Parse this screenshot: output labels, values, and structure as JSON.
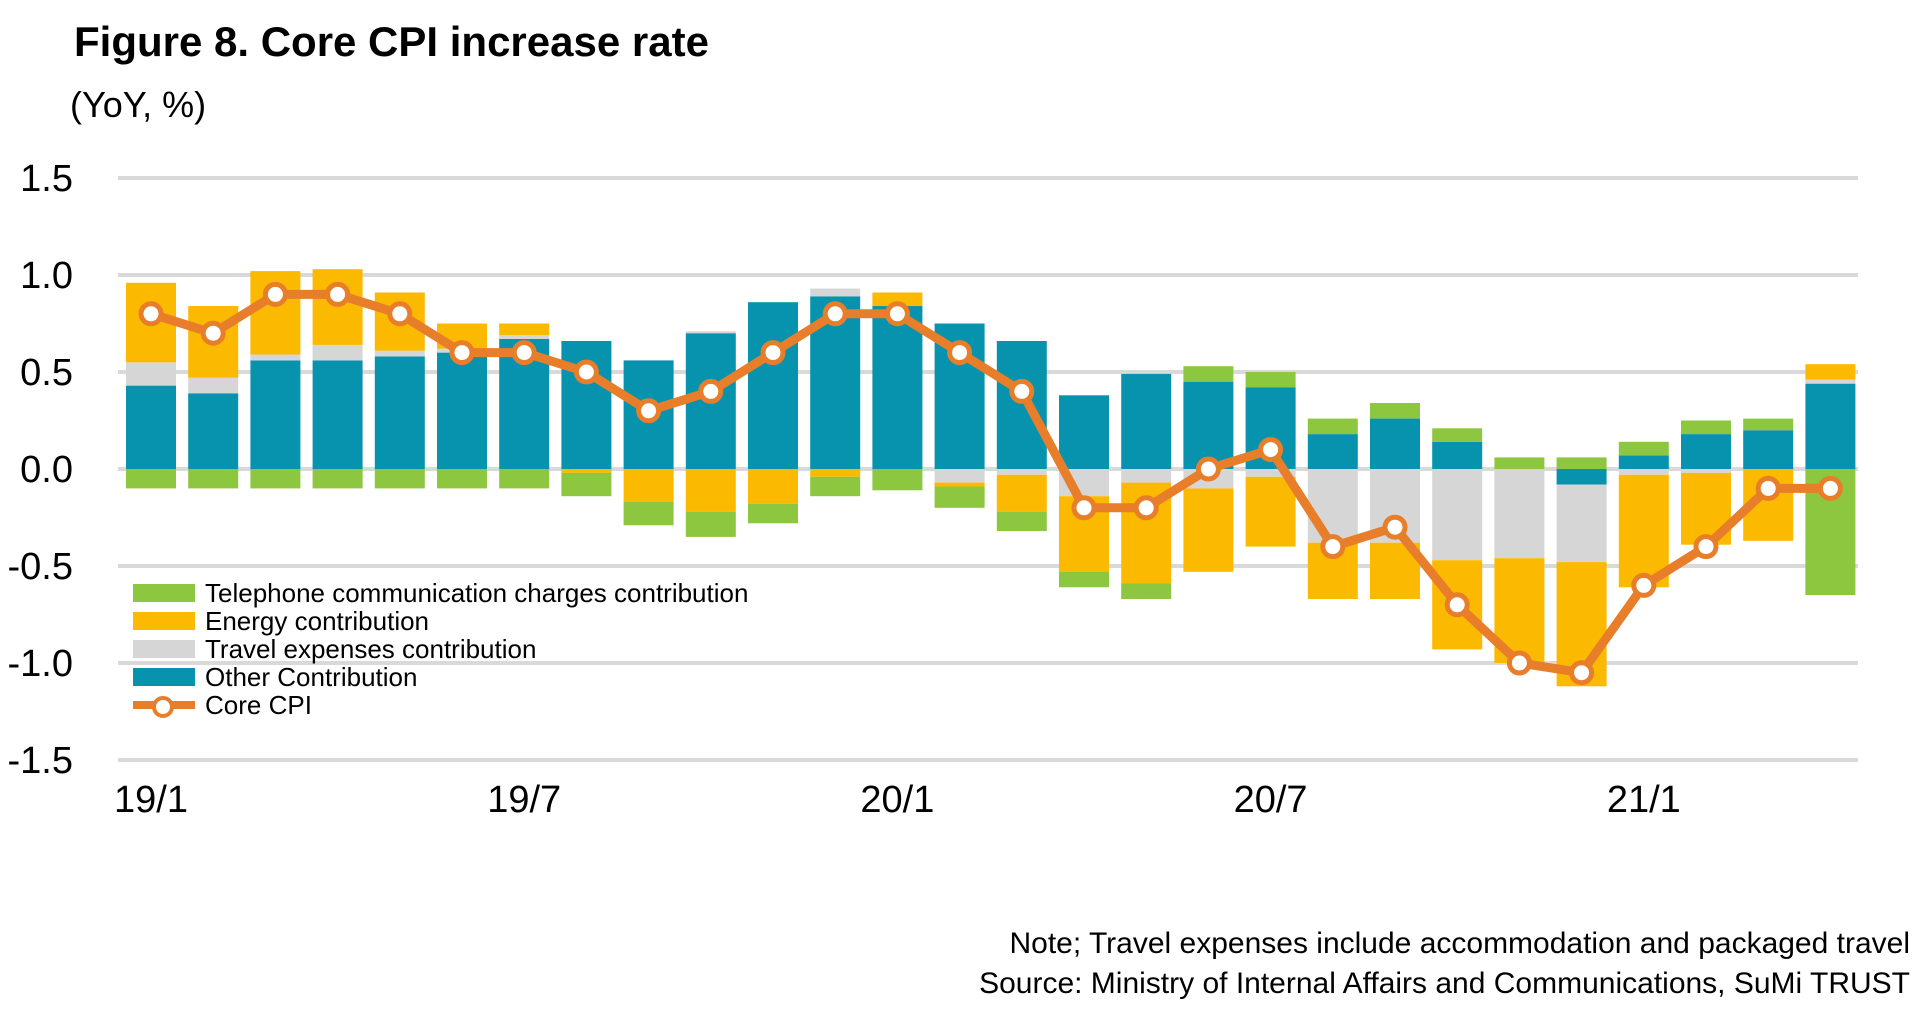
{
  "title": "Figure 8. Core CPI increase rate",
  "subtitle": "(YoY, %)",
  "notes": {
    "line1": "Note; Travel expenses include accommodation and packaged travel",
    "line2": "Source: Ministry of Internal Affairs and Communications, SuMi TRUST"
  },
  "colors": {
    "telephone": "#8DC63F",
    "energy": "#FBB900",
    "travel": "#D6D6D6",
    "other": "#0793AD",
    "core_line": "#E87D2A",
    "marker_fill": "#FFFFFF",
    "gridline": "#D9D9D9",
    "text": "#000000"
  },
  "chart_data": {
    "type": "bar",
    "subtype": "stacked-bars-with-line",
    "title": "Figure 8. Core CPI increase rate",
    "ylabel": "(YoY, %)",
    "ylim": [
      -1.5,
      1.5
    ],
    "yticks": [
      "1.5",
      "1.0",
      "0.5",
      "0.0",
      "-0.5",
      "-1.0",
      "-1.5"
    ],
    "ytick_values": [
      1.5,
      1.0,
      0.5,
      0.0,
      -0.5,
      -1.0,
      -1.5
    ],
    "grid": "horizontal",
    "legend_position": "inside-lower-left",
    "categories": [
      "19/1",
      "19/2",
      "19/3",
      "19/4",
      "19/5",
      "19/6",
      "19/7",
      "19/8",
      "19/9",
      "19/10",
      "19/11",
      "19/12",
      "20/1",
      "20/2",
      "20/3",
      "20/4",
      "20/5",
      "20/6",
      "20/7",
      "20/8",
      "20/9",
      "20/10",
      "20/11",
      "20/12",
      "21/1",
      "21/2",
      "21/3",
      "21/4"
    ],
    "x_ticks": [
      {
        "index": 0,
        "label": "19/1"
      },
      {
        "index": 6,
        "label": "19/7"
      },
      {
        "index": 12,
        "label": "20/1"
      },
      {
        "index": 18,
        "label": "20/7"
      },
      {
        "index": 24,
        "label": "21/1"
      }
    ],
    "stack_order_from_axis": [
      "other",
      "travel",
      "energy",
      "telephone"
    ],
    "series": [
      {
        "key": "telephone",
        "name": "Telephone communication charges contribution",
        "values": [
          -0.1,
          -0.1,
          -0.1,
          -0.1,
          -0.1,
          -0.1,
          -0.1,
          -0.12,
          -0.12,
          -0.13,
          -0.1,
          -0.1,
          -0.11,
          -0.11,
          -0.1,
          -0.08,
          -0.08,
          0.08,
          0.08,
          0.08,
          0.08,
          0.07,
          0.06,
          0.06,
          0.07,
          0.07,
          0.06,
          -0.65
        ]
      },
      {
        "key": "energy",
        "name": "Energy contribution",
        "values": [
          0.41,
          0.37,
          0.43,
          0.39,
          0.3,
          0.13,
          0.06,
          -0.02,
          -0.17,
          -0.22,
          -0.18,
          -0.04,
          0.07,
          -0.02,
          -0.19,
          -0.39,
          -0.52,
          -0.43,
          -0.36,
          -0.29,
          -0.29,
          -0.46,
          -0.54,
          -0.64,
          -0.58,
          -0.37,
          -0.37,
          0.08
        ]
      },
      {
        "key": "travel",
        "name": "Travel expenses contribution",
        "values": [
          0.12,
          0.08,
          0.03,
          0.08,
          0.03,
          0.02,
          0.02,
          0.0,
          0.0,
          0.01,
          0.0,
          0.04,
          0.0,
          -0.07,
          -0.03,
          -0.14,
          -0.07,
          -0.1,
          -0.04,
          -0.38,
          -0.38,
          -0.47,
          -0.46,
          -0.4,
          -0.03,
          -0.02,
          0.0,
          0.02
        ]
      },
      {
        "key": "other",
        "name": "Other Contribution",
        "values": [
          0.43,
          0.39,
          0.56,
          0.56,
          0.58,
          0.6,
          0.67,
          0.66,
          0.56,
          0.7,
          0.86,
          0.89,
          0.84,
          0.75,
          0.66,
          0.38,
          0.49,
          0.45,
          0.42,
          0.18,
          0.26,
          0.14,
          0.0,
          -0.08,
          0.07,
          0.18,
          0.2,
          0.44
        ]
      }
    ],
    "line_series": {
      "key": "core",
      "name": "Core CPI",
      "values": [
        0.8,
        0.7,
        0.9,
        0.9,
        0.8,
        0.6,
        0.6,
        0.5,
        0.3,
        0.4,
        0.6,
        0.8,
        0.8,
        0.6,
        0.4,
        -0.2,
        -0.2,
        0.0,
        0.1,
        -0.4,
        -0.3,
        -0.7,
        -1.0,
        -1.05,
        -0.6,
        -0.4,
        -0.1,
        -0.1
      ]
    }
  }
}
